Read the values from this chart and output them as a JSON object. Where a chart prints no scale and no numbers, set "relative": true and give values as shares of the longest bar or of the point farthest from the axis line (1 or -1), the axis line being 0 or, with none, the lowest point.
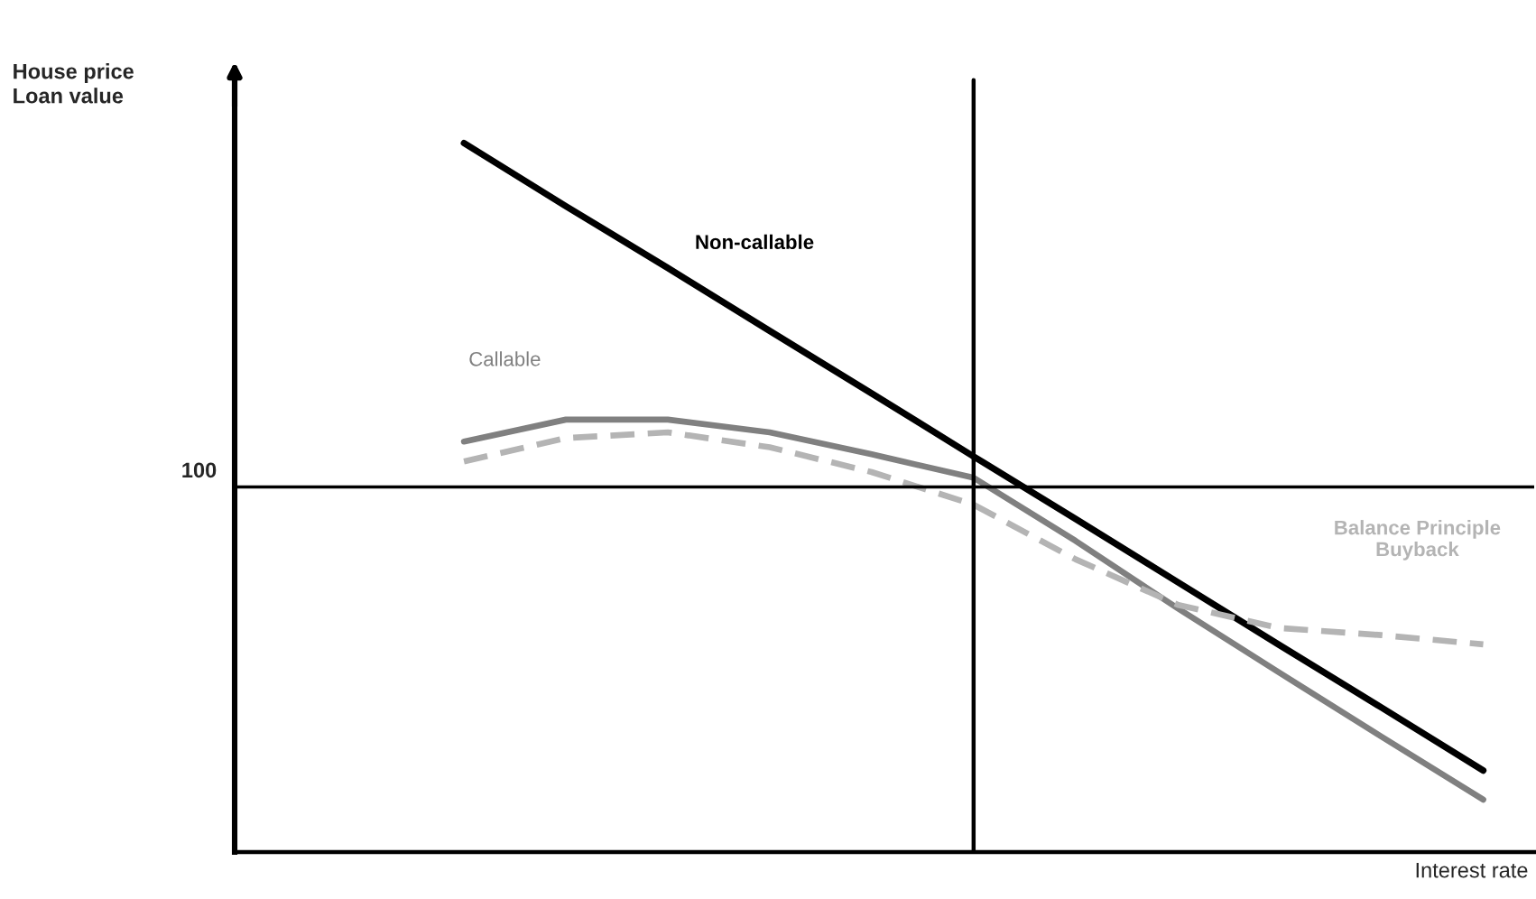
{
  "chart_data": {
    "type": "line",
    "relative": true,
    "xlabel": "Interest rate",
    "annotations": [
      "House price\nLoan value",
      "100"
    ],
    "categories": [
      null,
      null,
      null,
      null,
      null,
      null,
      null,
      null,
      null,
      null,
      null
    ],
    "series": [
      {
        "name": "Non-callable",
        "color": "#000000",
        "line_style": "solid",
        "values": [
          1,
          0.911,
          0.824,
          0.735,
          0.647,
          0.558,
          0.47,
          0.381,
          0.292,
          0.204,
          0.115
        ]
      },
      {
        "name": "Callable",
        "color": "#808080",
        "line_style": "solid",
        "values": [
          0.579,
          0.61,
          0.61,
          0.592,
          0.561,
          0.528,
          0.439,
          0.344,
          0.253,
          0.163,
          0.074
        ]
      },
      {
        "name": "Balance Principle\nBuyback",
        "color": "#b4b4b4",
        "line_style": "dashed",
        "values": [
          0.551,
          0.584,
          0.592,
          0.571,
          0.536,
          0.49,
          0.413,
          0.349,
          0.316,
          0.306,
          0.293
        ]
      }
    ],
    "ref_lines": [
      {
        "axis": "y",
        "value": 0.515,
        "color": "#000000"
      }
    ],
    "legend": false,
    "marker": "none"
  }
}
